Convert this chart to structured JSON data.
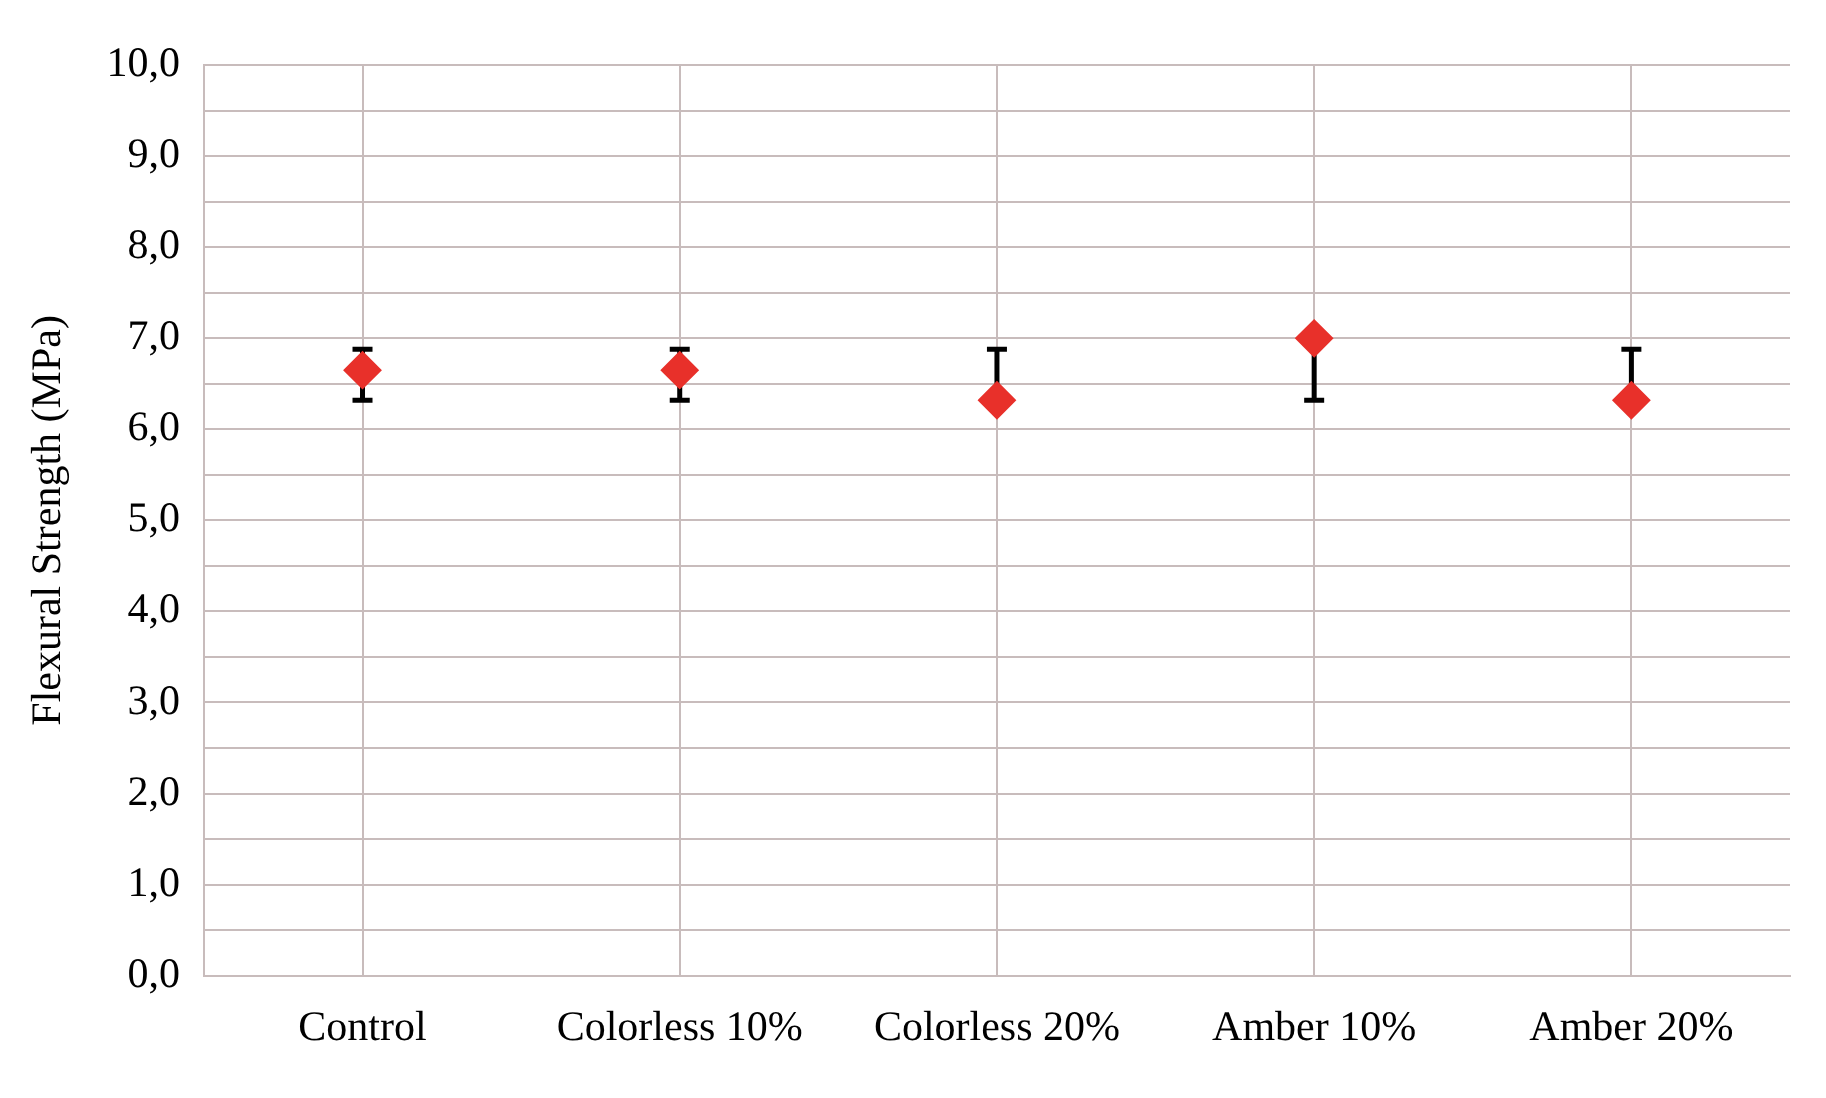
{
  "chart_data": {
    "type": "scatter",
    "ylabel": "Flexural Strength (MPa)",
    "categories": [
      "Control",
      "Colorless 10%",
      "Colorless 20%",
      "Amber 10%",
      "Amber 20%"
    ],
    "series": [
      {
        "color": "#e8302a",
        "values": [
          6.65,
          6.65,
          6.32,
          7.0,
          6.32
        ],
        "errors": [
          [
            6.32,
            6.88
          ],
          [
            6.32,
            6.88
          ],
          [
            6.32,
            6.88
          ],
          [
            6.32,
            7.0
          ],
          [
            6.32,
            6.88
          ]
        ]
      }
    ],
    "ylim": [
      0,
      10
    ],
    "yticks": [
      {
        "value": 0,
        "label": "0,0"
      },
      {
        "value": 0.5,
        "label": null
      },
      {
        "value": 1,
        "label": "1,0"
      },
      {
        "value": 1.5,
        "label": null
      },
      {
        "value": 2,
        "label": "2,0"
      },
      {
        "value": 2.5,
        "label": null
      },
      {
        "value": 3,
        "label": "3,0"
      },
      {
        "value": 3.5,
        "label": null
      },
      {
        "value": 4,
        "label": "4,0"
      },
      {
        "value": 4.5,
        "label": null
      },
      {
        "value": 5,
        "label": "5,0"
      },
      {
        "value": 5.5,
        "label": null
      },
      {
        "value": 6,
        "label": "6,0"
      },
      {
        "value": 6.5,
        "label": null
      },
      {
        "value": 7,
        "label": "7,0"
      },
      {
        "value": 7.5,
        "label": null
      },
      {
        "value": 8,
        "label": "8,0"
      },
      {
        "value": 8.5,
        "label": null
      },
      {
        "value": 9,
        "label": "9,0"
      },
      {
        "value": 9.5,
        "label": null
      },
      {
        "value": 10,
        "label": "10,0"
      }
    ],
    "grid": true,
    "legend": false,
    "marker": "diamond"
  }
}
